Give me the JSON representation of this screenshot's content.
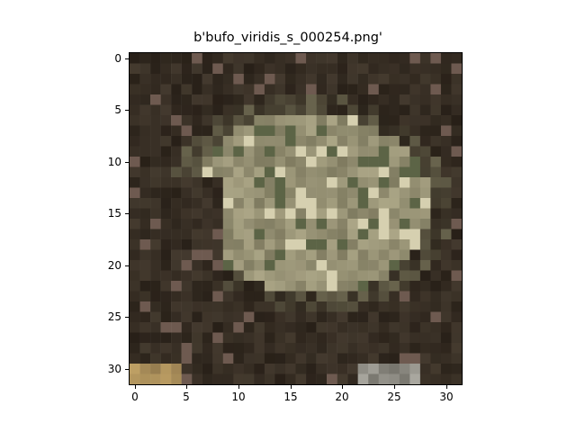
{
  "figure": {
    "title": "b'bufo_viridis_s_000254.png'"
  },
  "image": {
    "description_grid_size": 32,
    "dominant_colors": [
      "#8f8a6e",
      "#a7a486",
      "#6e6c52",
      "#2a2219",
      "#3a3226",
      "#c9c4a2",
      "#544a3a"
    ]
  },
  "axes": {
    "x_ticks": [
      "0",
      "5",
      "10",
      "15",
      "20",
      "25",
      "30"
    ],
    "y_ticks": [
      "0",
      "5",
      "10",
      "15",
      "20",
      "25",
      "30"
    ]
  }
}
